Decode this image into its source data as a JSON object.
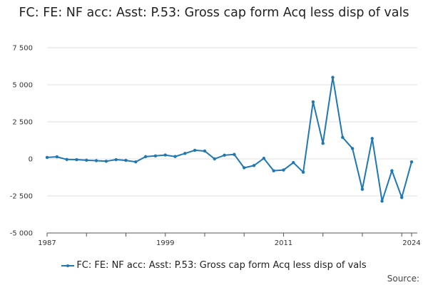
{
  "chart_data": {
    "type": "line",
    "title": "FC: FE: NF acc: Asst: P.53: Gross cap form Acq less disp of vals",
    "x": [
      1987,
      1988,
      1989,
      1990,
      1991,
      1992,
      1993,
      1994,
      1995,
      1996,
      1997,
      1998,
      1999,
      2000,
      2001,
      2002,
      2003,
      2004,
      2005,
      2006,
      2007,
      2008,
      2009,
      2010,
      2011,
      2012,
      2013,
      2014,
      2015,
      2016,
      2017,
      2018,
      2019,
      2020,
      2021,
      2022,
      2023,
      2024
    ],
    "series": [
      {
        "name": "FC: FE: NF acc: Asst: P.53: Gross cap form Acq less disp of vals",
        "color": "#1f77b4",
        "values": [
          100,
          140,
          -40,
          -50,
          -90,
          -120,
          -160,
          -50,
          -100,
          -200,
          150,
          200,
          260,
          160,
          370,
          580,
          530,
          0,
          250,
          300,
          -600,
          -450,
          40,
          -800,
          -750,
          -250,
          -900,
          3850,
          1050,
          5500,
          1450,
          700,
          -2050,
          1380,
          -2850,
          -800,
          -2600,
          -200
        ]
      }
    ],
    "x_ticks": [
      "1987",
      "1999",
      "2011",
      "2024"
    ],
    "y_ticks": [
      "7 500",
      "5 000",
      "2 500",
      "0",
      "-2 500",
      "-5 000"
    ],
    "ylim": [
      -5000,
      7500
    ],
    "xlim": [
      1987,
      2024
    ],
    "grid": true
  },
  "legend": {
    "label": "FC: FE: NF acc: Asst: P.53: Gross cap form Acq less disp of vals"
  },
  "source": {
    "label": "Source:"
  }
}
